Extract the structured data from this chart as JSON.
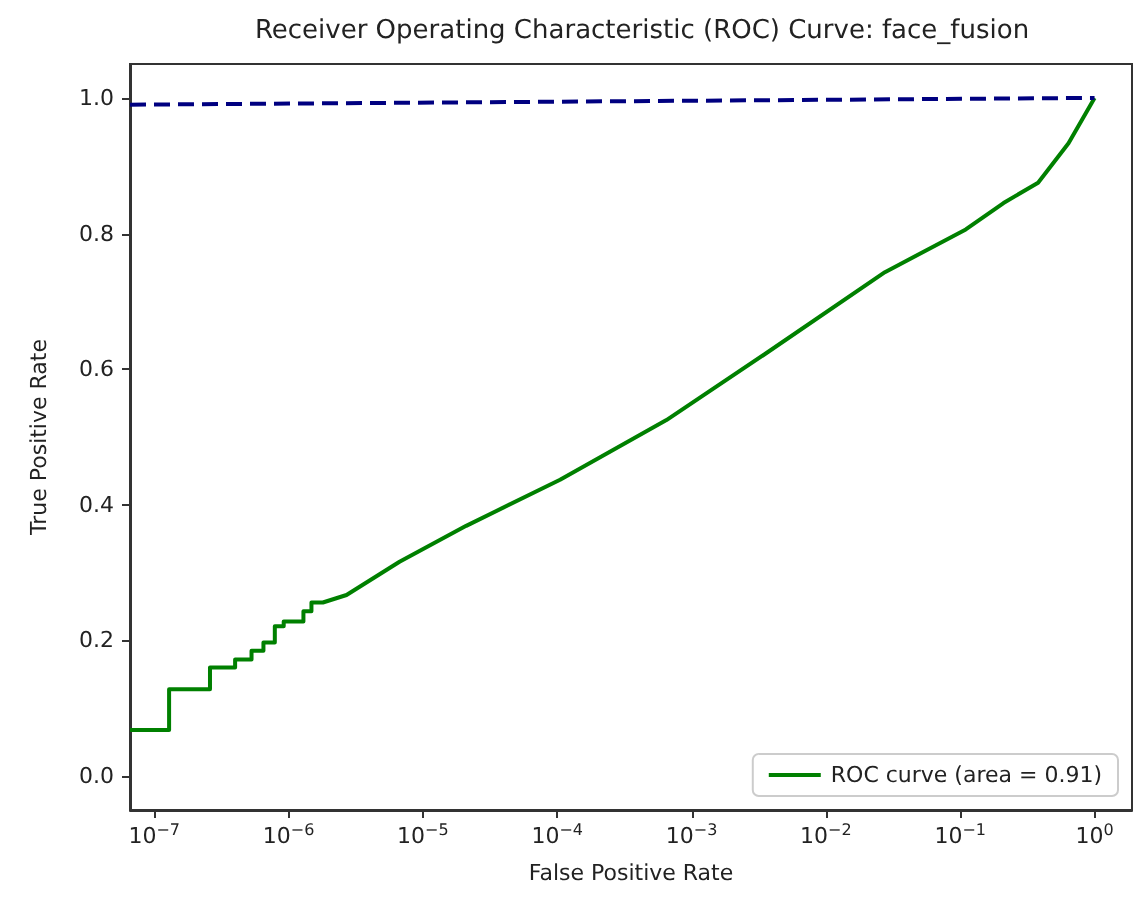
{
  "chart_data": {
    "type": "line",
    "title": "Receiver Operating Characteristic (ROC) Curve: face_fusion",
    "xlabel": "False Positive Rate",
    "ylabel": "True Positive Rate",
    "log": "x",
    "xlim": [
      6.6e-08,
      1.9
    ],
    "ylim": [
      -0.05,
      1.05
    ],
    "xticks": [
      {
        "value": 1e-07,
        "label": "10$^{−7}$"
      },
      {
        "value": 1e-06,
        "label": "10$^{−6}$"
      },
      {
        "value": 1e-05,
        "label": "10$^{−5}$"
      },
      {
        "value": 0.0001,
        "label": "10$^{−4}$"
      },
      {
        "value": 0.001,
        "label": "10$^{−3}$"
      },
      {
        "value": 0.01,
        "label": "10$^{−2}$"
      },
      {
        "value": 0.1,
        "label": "10$^{−1}$"
      },
      {
        "value": 1,
        "label": "10$^{0}$"
      }
    ],
    "yticks": [
      {
        "value": 0,
        "label": "0.0"
      },
      {
        "value": 0.2,
        "label": "0.2"
      },
      {
        "value": 0.4,
        "label": "0.4"
      },
      {
        "value": 0.6,
        "label": "0.6"
      },
      {
        "value": 0.8,
        "label": "0.8"
      },
      {
        "value": 1,
        "label": "1.0"
      }
    ],
    "grid": false,
    "legend": "bottom right",
    "marker": "none",
    "series": [
      {
        "name": "ROC curve (area = 0.91)",
        "color": "#008000",
        "line_style": "solid",
        "x": [
          6.6e-08,
          1.29e-07,
          1.29e-07,
          2.6e-07,
          2.6e-07,
          4e-07,
          4e-07,
          5.3e-07,
          5.3e-07,
          6.5e-07,
          6.5e-07,
          7.9e-07,
          7.9e-07,
          9.2e-07,
          9.2e-07,
          1.29e-06,
          1.29e-06,
          1.48e-06,
          1.48e-06,
          1.8e-06,
          2.7e-06,
          6.7e-06,
          2.1e-05,
          0.000105,
          0.00065,
          0.0035,
          0.0275,
          0.11,
          0.21,
          0.38,
          0.64,
          1
        ],
        "values": [
          0.068,
          0.068,
          0.128,
          0.128,
          0.16,
          0.16,
          0.172,
          0.172,
          0.185,
          0.185,
          0.197,
          0.197,
          0.221,
          0.221,
          0.228,
          0.228,
          0.243,
          0.243,
          0.256,
          0.256,
          0.267,
          0.316,
          0.369,
          0.437,
          0.525,
          0.622,
          0.743,
          0.806,
          0.845,
          0.875,
          0.933,
          1.0
        ]
      },
      {
        "color": "#000080",
        "line_style": "dashed",
        "x": [
          6.6e-08,
          1
        ],
        "values": [
          0.99,
          1.0
        ]
      }
    ]
  }
}
